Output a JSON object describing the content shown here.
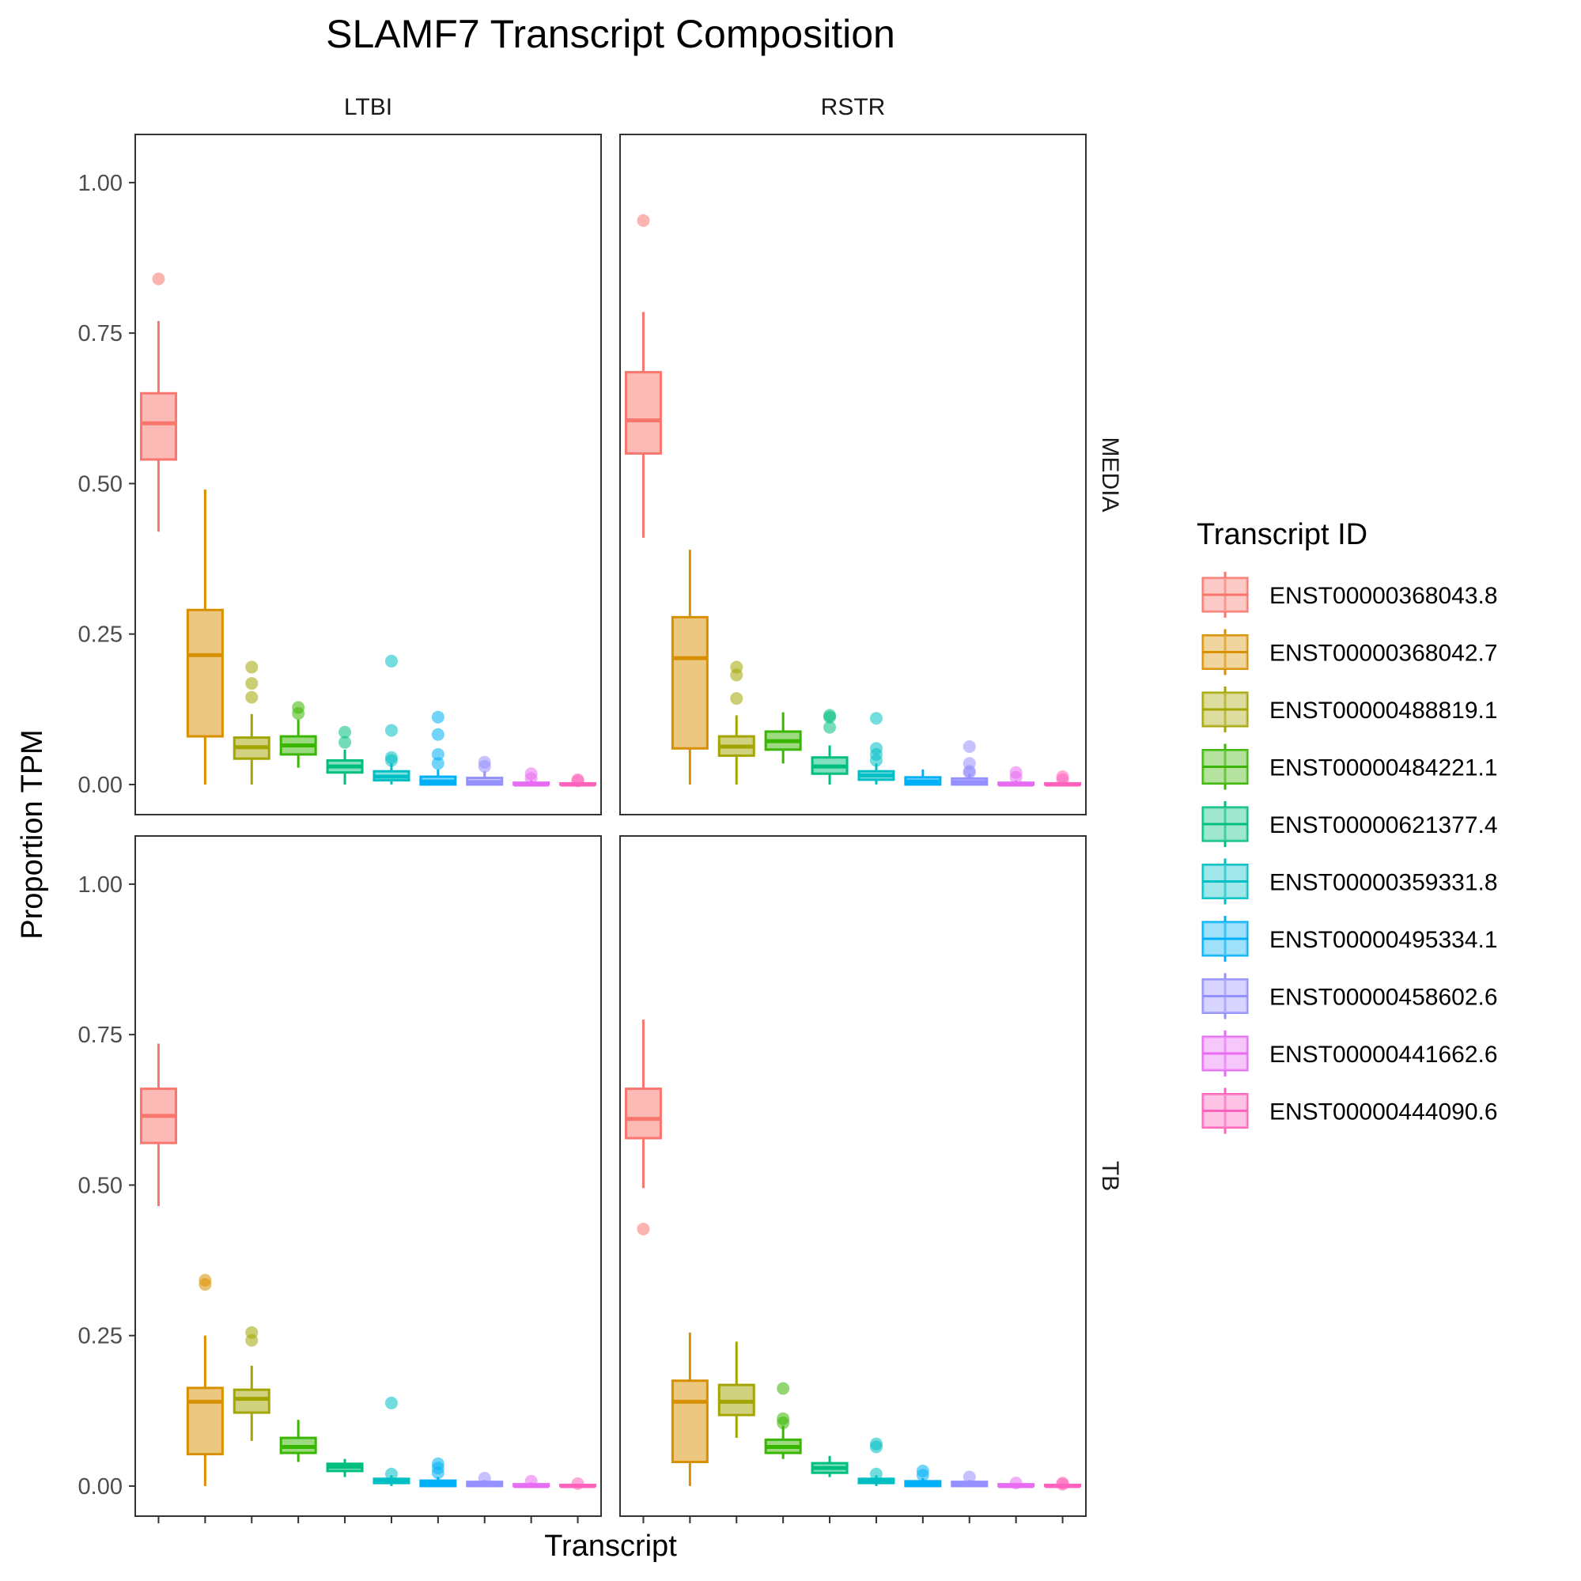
{
  "chart_data": {
    "type": "box",
    "title": "SLAMF7 Transcript Composition",
    "xlabel": "Transcript",
    "ylabel": "Proportion TPM",
    "ylim": [
      -0.05,
      1.08
    ],
    "yticks": [
      "0.00",
      "0.25",
      "0.50",
      "0.75",
      "1.00"
    ],
    "ytick_values": [
      0,
      0.25,
      0.5,
      0.75,
      1.0
    ],
    "col_facets": [
      "LTBI",
      "RSTR"
    ],
    "row_facets": [
      "MEDIA",
      "TB"
    ],
    "legend": {
      "title": "Transcript ID",
      "placement": "right"
    },
    "transcripts": [
      "ENST00000368043.8",
      "ENST00000368042.7",
      "ENST00000488819.1",
      "ENST00000484221.1",
      "ENST00000621377.4",
      "ENST00000359331.8",
      "ENST00000495334.1",
      "ENST00000458602.6",
      "ENST00000441662.6",
      "ENST00000444090.6"
    ],
    "colors": [
      "#F8766D",
      "#D89000",
      "#A3A500",
      "#39B600",
      "#00BF7D",
      "#00BFC4",
      "#00B0F6",
      "#9590FF",
      "#E76BF3",
      "#FF62BC"
    ],
    "panels": [
      {
        "row": "MEDIA",
        "col": "LTBI",
        "boxes": [
          {
            "min": 0.42,
            "q1": 0.54,
            "median": 0.6,
            "q3": 0.65,
            "max": 0.77,
            "outliers": [
              0.84
            ]
          },
          {
            "min": 0.0,
            "q1": 0.08,
            "median": 0.215,
            "q3": 0.29,
            "max": 0.49,
            "outliers": []
          },
          {
            "min": 0.0,
            "q1": 0.043,
            "median": 0.062,
            "q3": 0.078,
            "max": 0.117,
            "outliers": [
              0.195,
              0.168,
              0.145
            ]
          },
          {
            "min": 0.028,
            "q1": 0.05,
            "median": 0.065,
            "q3": 0.08,
            "max": 0.108,
            "outliers": [
              0.128,
              0.118
            ]
          },
          {
            "min": 0.0,
            "q1": 0.02,
            "median": 0.03,
            "q3": 0.04,
            "max": 0.058,
            "outliers": [
              0.087,
              0.07
            ]
          },
          {
            "min": 0.0,
            "q1": 0.007,
            "median": 0.013,
            "q3": 0.022,
            "max": 0.035,
            "outliers": [
              0.205,
              0.09,
              0.045,
              0.04
            ]
          },
          {
            "min": 0.0,
            "q1": 0.0,
            "median": 0.005,
            "q3": 0.013,
            "max": 0.025,
            "outliers": [
              0.112,
              0.083,
              0.05,
              0.035
            ]
          },
          {
            "min": 0.0,
            "q1": 0.0,
            "median": 0.004,
            "q3": 0.011,
            "max": 0.022,
            "outliers": [
              0.037,
              0.03
            ]
          },
          {
            "min": 0.0,
            "q1": 0.0,
            "median": 0.0,
            "q3": 0.003,
            "max": 0.007,
            "outliers": [
              0.018,
              0.01
            ]
          },
          {
            "min": 0.0,
            "q1": 0.0,
            "median": 0.0,
            "q3": 0.002,
            "max": 0.004,
            "outliers": [
              0.008,
              0.006
            ]
          }
        ]
      },
      {
        "row": "MEDIA",
        "col": "RSTR",
        "boxes": [
          {
            "min": 0.41,
            "q1": 0.55,
            "median": 0.605,
            "q3": 0.685,
            "max": 0.785,
            "outliers": [
              0.937
            ]
          },
          {
            "min": 0.0,
            "q1": 0.06,
            "median": 0.21,
            "q3": 0.278,
            "max": 0.39,
            "outliers": []
          },
          {
            "min": 0.0,
            "q1": 0.048,
            "median": 0.063,
            "q3": 0.08,
            "max": 0.115,
            "outliers": [
              0.195,
              0.182,
              0.143
            ]
          },
          {
            "min": 0.035,
            "q1": 0.058,
            "median": 0.072,
            "q3": 0.088,
            "max": 0.12,
            "outliers": []
          },
          {
            "min": 0.0,
            "q1": 0.018,
            "median": 0.03,
            "q3": 0.045,
            "max": 0.065,
            "outliers": [
              0.115,
              0.112,
              0.095
            ]
          },
          {
            "min": 0.0,
            "q1": 0.008,
            "median": 0.015,
            "q3": 0.022,
            "max": 0.035,
            "outliers": [
              0.11,
              0.06,
              0.05,
              0.04
            ]
          },
          {
            "min": 0.0,
            "q1": 0.0,
            "median": 0.005,
            "q3": 0.012,
            "max": 0.025,
            "outliers": []
          },
          {
            "min": 0.0,
            "q1": 0.0,
            "median": 0.004,
            "q3": 0.01,
            "max": 0.018,
            "outliers": [
              0.063,
              0.035,
              0.022,
              0.02
            ]
          },
          {
            "min": 0.0,
            "q1": 0.0,
            "median": 0.0,
            "q3": 0.003,
            "max": 0.007,
            "outliers": [
              0.02,
              0.012
            ]
          },
          {
            "min": 0.0,
            "q1": 0.0,
            "median": 0.0,
            "q3": 0.002,
            "max": 0.004,
            "outliers": [
              0.013,
              0.008
            ]
          }
        ]
      },
      {
        "row": "TB",
        "col": "LTBI",
        "boxes": [
          {
            "min": 0.465,
            "q1": 0.57,
            "median": 0.615,
            "q3": 0.66,
            "max": 0.735,
            "outliers": []
          },
          {
            "min": 0.0,
            "q1": 0.053,
            "median": 0.14,
            "q3": 0.163,
            "max": 0.25,
            "outliers": [
              0.342,
              0.335
            ]
          },
          {
            "min": 0.075,
            "q1": 0.122,
            "median": 0.145,
            "q3": 0.16,
            "max": 0.2,
            "outliers": [
              0.255,
              0.242
            ]
          },
          {
            "min": 0.04,
            "q1": 0.055,
            "median": 0.065,
            "q3": 0.08,
            "max": 0.11,
            "outliers": []
          },
          {
            "min": 0.015,
            "q1": 0.025,
            "median": 0.032,
            "q3": 0.037,
            "max": 0.045,
            "outliers": []
          },
          {
            "min": 0.0,
            "q1": 0.005,
            "median": 0.008,
            "q3": 0.012,
            "max": 0.018,
            "outliers": [
              0.138,
              0.02
            ]
          },
          {
            "min": 0.0,
            "q1": 0.0,
            "median": 0.004,
            "q3": 0.009,
            "max": 0.015,
            "outliers": [
              0.037,
              0.03,
              0.022
            ]
          },
          {
            "min": 0.0,
            "q1": 0.0,
            "median": 0.003,
            "q3": 0.007,
            "max": 0.01,
            "outliers": [
              0.013
            ]
          },
          {
            "min": 0.0,
            "q1": 0.0,
            "median": 0.0,
            "q3": 0.003,
            "max": 0.006,
            "outliers": [
              0.008
            ]
          },
          {
            "min": 0.0,
            "q1": 0.0,
            "median": 0.0,
            "q3": 0.002,
            "max": 0.004,
            "outliers": [
              0.004
            ]
          }
        ]
      },
      {
        "row": "TB",
        "col": "RSTR",
        "boxes": [
          {
            "min": 0.495,
            "q1": 0.578,
            "median": 0.61,
            "q3": 0.66,
            "max": 0.775,
            "outliers": [
              0.427
            ]
          },
          {
            "min": 0.0,
            "q1": 0.04,
            "median": 0.14,
            "q3": 0.175,
            "max": 0.255,
            "outliers": []
          },
          {
            "min": 0.08,
            "q1": 0.118,
            "median": 0.14,
            "q3": 0.168,
            "max": 0.24,
            "outliers": []
          },
          {
            "min": 0.045,
            "q1": 0.055,
            "median": 0.065,
            "q3": 0.077,
            "max": 0.1,
            "outliers": [
              0.162,
              0.112,
              0.105
            ]
          },
          {
            "min": 0.015,
            "q1": 0.022,
            "median": 0.03,
            "q3": 0.038,
            "max": 0.05,
            "outliers": []
          },
          {
            "min": 0.0,
            "q1": 0.005,
            "median": 0.008,
            "q3": 0.012,
            "max": 0.018,
            "outliers": [
              0.07,
              0.065,
              0.02
            ]
          },
          {
            "min": 0.0,
            "q1": 0.0,
            "median": 0.004,
            "q3": 0.008,
            "max": 0.013,
            "outliers": [
              0.025,
              0.018
            ]
          },
          {
            "min": 0.0,
            "q1": 0.0,
            "median": 0.003,
            "q3": 0.007,
            "max": 0.01,
            "outliers": [
              0.015
            ]
          },
          {
            "min": 0.0,
            "q1": 0.0,
            "median": 0.0,
            "q3": 0.003,
            "max": 0.005,
            "outliers": [
              0.005
            ]
          },
          {
            "min": 0.0,
            "q1": 0.0,
            "median": 0.0,
            "q3": 0.002,
            "max": 0.004,
            "outliers": [
              0.005,
              0.003
            ]
          }
        ]
      }
    ]
  }
}
